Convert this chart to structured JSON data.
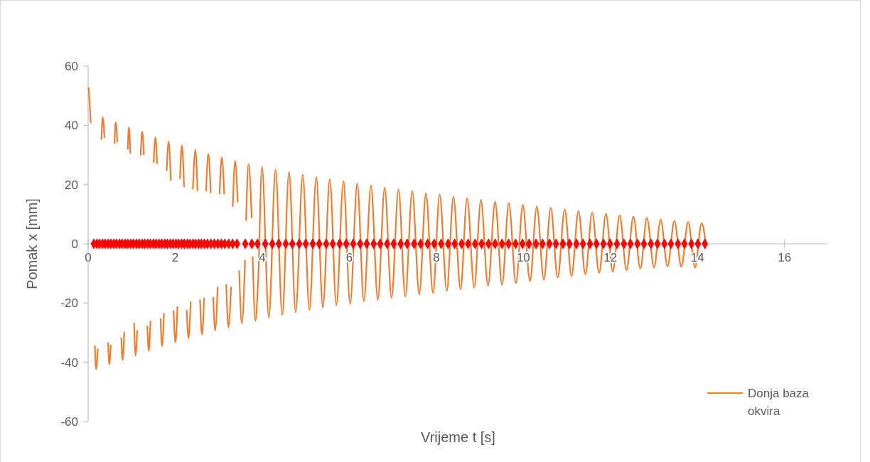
{
  "chart_data": {
    "type": "line",
    "xlabel": "Vrijeme t [s]",
    "ylabel": "Pomak x [mm]",
    "xlim": [
      0,
      17
    ],
    "ylim": [
      -60,
      60
    ],
    "xticks": [
      0,
      2,
      4,
      6,
      8,
      10,
      12,
      14,
      16
    ],
    "yticks": [
      -60,
      -40,
      -20,
      0,
      20,
      40,
      60
    ],
    "legend": "right",
    "series": [
      {
        "name": "Donja baza okvira",
        "color": "#ed7d31",
        "marker": "none",
        "x": [
          0.013,
          0.06,
          0.1,
          0.154,
          0.183,
          0.222,
          0.26,
          0.306,
          0.335,
          0.374,
          0.41,
          0.458,
          0.487,
          0.52,
          0.56,
          0.605,
          0.633,
          0.672,
          0.71,
          0.762,
          0.79,
          0.83,
          0.87,
          0.909,
          0.937,
          0.971,
          1.01,
          1.055,
          1.089,
          1.128,
          1.17,
          1.207,
          1.241,
          1.28,
          1.32,
          1.359,
          1.393,
          1.432,
          1.47,
          1.505,
          1.545,
          1.584,
          1.62,
          1.663,
          1.697,
          1.742,
          1.77,
          1.804,
          1.848,
          1.9,
          1.93,
          1.962,
          2.007,
          2.052,
          2.08,
          2.108,
          2.154,
          2.204,
          2.23,
          2.265,
          2.305,
          2.356,
          2.38,
          2.406,
          2.462,
          2.513,
          2.54,
          2.57,
          2.614,
          2.665,
          2.69,
          2.71,
          2.761,
          2.817,
          2.84,
          2.873,
          2.919,
          2.975,
          3.0,
          3.02,
          3.071,
          3.127,
          3.15,
          3.172,
          3.223,
          3.284,
          3.3,
          3.324,
          3.375,
          3.436,
          3.45,
          3.47,
          3.531,
          3.605,
          3.615,
          3.628,
          3.685,
          3.758,
          3.77,
          3.78,
          3.842,
          3.904,
          3.994,
          4.152,
          4.304,
          4.46,
          4.615,
          4.767,
          4.931,
          5.083,
          5.241,
          5.393,
          5.551,
          5.703,
          5.866,
          6.019,
          6.183,
          6.335,
          6.498,
          6.656,
          6.813,
          6.971,
          7.13,
          7.287,
          7.445,
          7.608,
          7.76,
          7.923,
          8.076,
          8.24,
          8.392,
          8.555,
          8.707,
          8.87,
          9.023,
          9.187,
          9.35,
          9.51,
          9.665,
          9.829,
          9.987,
          10.15,
          10.307,
          10.47,
          10.629,
          10.787,
          10.95,
          11.107,
          11.265,
          11.424,
          11.58,
          11.739,
          11.897,
          12.054,
          12.212,
          12.37,
          12.527,
          12.686,
          12.838,
          13.001,
          13.154,
          13.311,
          13.469,
          13.628,
          13.785,
          13.943,
          14.095,
          14.19
        ],
        "values": [
          52.8,
          40.8,
          null,
          -34.4,
          -42.4,
          -35.4,
          null,
          35.1,
          42.8,
          35.8,
          null,
          -33.3,
          -40.7,
          -34.1,
          null,
          33.7,
          41.0,
          34.3,
          null,
          -31.6,
          -39.3,
          -29.7,
          null,
          31.8,
          39.4,
          30.4,
          null,
          -26.7,
          -37.7,
          -29.2,
          null,
          29.8,
          37.9,
          30.0,
          null,
          -27.7,
          -36.2,
          -26.0,
          null,
          27.4,
          36.0,
          27.0,
          null,
          -25.2,
          -34.5,
          -23.4,
          null,
          24.6,
          34.6,
          21.3,
          null,
          -22.5,
          -33.3,
          -21.1,
          null,
          21.9,
          33.2,
          19.2,
          null,
          -22.3,
          -31.9,
          -19.5,
          null,
          18.4,
          31.8,
          17.9,
          null,
          -18.8,
          -30.6,
          -18.2,
          null,
          17.8,
          30.4,
          17.1,
          null,
          -18.0,
          -29.2,
          -14.5,
          null,
          16.8,
          29.2,
          16.7,
          null,
          -13.7,
          -28.1,
          -14.5,
          null,
          12.5,
          28.0,
          14.0,
          null,
          -9.0,
          -26.9,
          -5.4,
          null,
          7.8,
          27.0,
          8.7,
          null,
          -4.3,
          -26.0,
          -12.9,
          26.0,
          -25.0,
          25.0,
          -24.0,
          24.2,
          -23.1,
          23.4,
          -22.3,
          22.5,
          -21.5,
          21.8,
          -20.7,
          21.1,
          -20.3,
          20.4,
          -19.5,
          19.7,
          -18.9,
          19.0,
          -18.3,
          18.4,
          -17.8,
          17.8,
          -17.1,
          17.1,
          -16.6,
          16.6,
          -15.9,
          15.9,
          -15.4,
          15.4,
          -14.8,
          14.8,
          -14.2,
          14.2,
          -13.9,
          13.7,
          -13.3,
          13.1,
          -12.6,
          12.6,
          -12.1,
          12.1,
          -11.4,
          11.6,
          -10.9,
          11.1,
          -10.3,
          10.6,
          -9.8,
          10.1,
          -9.4,
          9.6,
          -8.9,
          9.2,
          -8.4,
          8.7,
          -8.0,
          8.2,
          -7.6,
          7.8,
          -7.8,
          7.4,
          -8.0,
          7.0,
          0
        ]
      },
      {
        "type": "scatter",
        "color": "#ff0000",
        "marker": "diamond",
        "x": [
          0.13,
          0.2,
          0.26,
          0.33,
          0.39,
          0.46,
          0.52,
          0.59,
          0.65,
          0.72,
          0.78,
          0.85,
          0.91,
          0.98,
          1.04,
          1.11,
          1.17,
          1.24,
          1.3,
          1.37,
          1.43,
          1.5,
          1.56,
          1.63,
          1.69,
          1.76,
          1.82,
          1.89,
          1.95,
          2.02,
          2.08,
          2.15,
          2.21,
          2.28,
          2.34,
          2.41,
          2.47,
          2.54,
          2.6,
          2.67,
          2.74,
          2.82,
          2.9,
          2.98,
          3.06,
          3.14,
          3.23,
          3.32,
          3.42,
          3.61,
          3.76,
          3.89,
          4.07,
          4.23,
          4.38,
          4.54,
          4.69,
          4.85,
          5.0,
          5.16,
          5.31,
          5.47,
          5.62,
          5.78,
          5.93,
          6.09,
          6.25,
          6.4,
          6.56,
          6.71,
          6.87,
          7.02,
          7.18,
          7.33,
          7.49,
          7.64,
          7.8,
          7.95,
          8.11,
          8.27,
          8.42,
          8.58,
          8.73,
          8.89,
          9.04,
          9.2,
          9.35,
          9.51,
          9.66,
          9.82,
          9.98,
          10.13,
          10.29,
          10.44,
          10.6,
          10.75,
          10.91,
          11.06,
          11.22,
          11.37,
          11.53,
          11.68,
          11.84,
          11.99,
          12.15,
          12.31,
          12.46,
          12.62,
          12.77,
          12.93,
          13.08,
          13.24,
          13.39,
          13.55,
          13.7,
          13.86,
          14.01,
          14.17
        ],
        "values": [
          0,
          0,
          0,
          0,
          0,
          0,
          0,
          0,
          0,
          0,
          0,
          0,
          0,
          0,
          0,
          0,
          0,
          0,
          0,
          0,
          0,
          0,
          0,
          0,
          0,
          0,
          0,
          0,
          0,
          0,
          0,
          0,
          0,
          0,
          0,
          0,
          0,
          0,
          0,
          0,
          0,
          0,
          0,
          0,
          0,
          0,
          0,
          0,
          0,
          0,
          0,
          0,
          0,
          0,
          0,
          0,
          0,
          0,
          0,
          0,
          0,
          0,
          0,
          0,
          0,
          0,
          0,
          0,
          0,
          0,
          0,
          0,
          0,
          0,
          0,
          0,
          0,
          0,
          0,
          0,
          0,
          0,
          0,
          0,
          0,
          0,
          0,
          0,
          0,
          0,
          0,
          0,
          0,
          0,
          0,
          0,
          0,
          0,
          0,
          0,
          0,
          0,
          0,
          0,
          0,
          0,
          0,
          0,
          0,
          0,
          0,
          0,
          0,
          0,
          0,
          0,
          0,
          0
        ]
      }
    ]
  }
}
